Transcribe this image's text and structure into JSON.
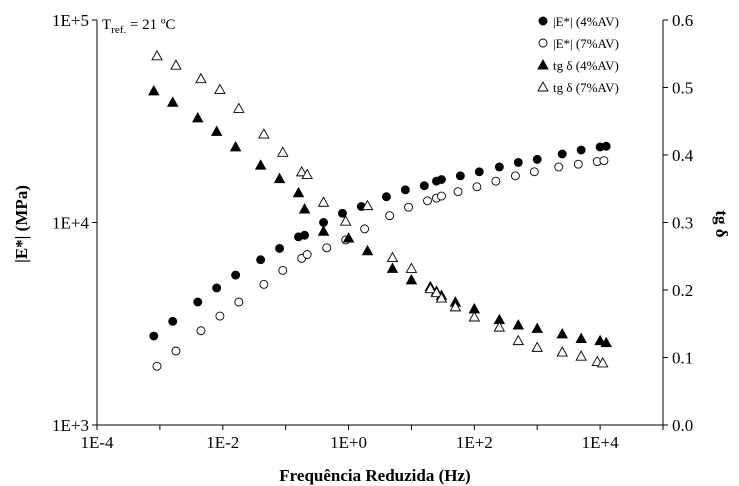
{
  "chart_data": {
    "type": "scatter",
    "annotation": {
      "main": "T",
      "sub": "ref.",
      "rest": " = 21 ºC"
    },
    "xlabel": "Frequência Reduzida (Hz)",
    "ylabel_left": "|E*| (MPa)",
    "ylabel_right": "tg δ",
    "x_scale": "log",
    "xlim": [
      0.0001,
      100000
    ],
    "x_tick_labels": [
      "1E-4",
      "1E-2",
      "1E+0",
      "1E+2",
      "1E+4"
    ],
    "y_left_scale": "log",
    "y_left_lim": [
      1000,
      100000
    ],
    "y_left_tick_labels": [
      "1E+3",
      "1E+4",
      "1E+5"
    ],
    "y_right_lim": [
      0.0,
      0.6
    ],
    "y_right_tick_labels": [
      "0.0",
      "0.1",
      "0.2",
      "0.3",
      "0.4",
      "0.5",
      "0.6"
    ],
    "grid": false,
    "legend_position": "top-right",
    "series": [
      {
        "name": "|E*| (4%AV)",
        "marker": "filled-circle",
        "axis": "left",
        "points": [
          [
            0.0008,
            2750
          ],
          [
            0.0016,
            3250
          ],
          [
            0.004,
            4050
          ],
          [
            0.008,
            4750
          ],
          [
            0.016,
            5500
          ],
          [
            0.04,
            6550
          ],
          [
            0.08,
            7450
          ],
          [
            0.16,
            8500
          ],
          [
            0.2,
            8650
          ],
          [
            0.4,
            10000
          ],
          [
            0.8,
            11100
          ],
          [
            1.6,
            12000
          ],
          [
            4,
            13400
          ],
          [
            8,
            14500
          ],
          [
            16,
            15200
          ],
          [
            25,
            16000
          ],
          [
            30,
            16300
          ],
          [
            60,
            17000
          ],
          [
            120,
            17800
          ],
          [
            250,
            18800
          ],
          [
            500,
            19800
          ],
          [
            1000,
            20500
          ],
          [
            2500,
            21800
          ],
          [
            5000,
            22800
          ],
          [
            10000,
            23600
          ],
          [
            12500,
            23800
          ]
        ]
      },
      {
        "name": "|E*| (7%AV)",
        "marker": "open-circle",
        "axis": "left",
        "points": [
          [
            0.0009,
            1950
          ],
          [
            0.0018,
            2320
          ],
          [
            0.0045,
            2920
          ],
          [
            0.009,
            3450
          ],
          [
            0.018,
            4050
          ],
          [
            0.045,
            4950
          ],
          [
            0.09,
            5800
          ],
          [
            0.18,
            6650
          ],
          [
            0.22,
            6950
          ],
          [
            0.45,
            7500
          ],
          [
            0.9,
            8200
          ],
          [
            1.8,
            9300
          ],
          [
            4.5,
            10800
          ],
          [
            9,
            11900
          ],
          [
            18,
            12800
          ],
          [
            25,
            13200
          ],
          [
            30,
            13500
          ],
          [
            55,
            14200
          ],
          [
            110,
            15000
          ],
          [
            220,
            16000
          ],
          [
            450,
            17000
          ],
          [
            900,
            17800
          ],
          [
            2200,
            18800
          ],
          [
            4500,
            19400
          ],
          [
            9000,
            20000
          ],
          [
            11500,
            20200
          ]
        ]
      },
      {
        "name": "tg δ (4%AV)",
        "marker": "filled-triangle",
        "axis": "right",
        "points": [
          [
            0.0008,
            0.495
          ],
          [
            0.0016,
            0.478
          ],
          [
            0.004,
            0.455
          ],
          [
            0.008,
            0.435
          ],
          [
            0.016,
            0.412
          ],
          [
            0.04,
            0.385
          ],
          [
            0.08,
            0.365
          ],
          [
            0.16,
            0.344
          ],
          [
            0.2,
            0.32
          ],
          [
            0.4,
            0.287
          ],
          [
            1.0,
            0.277
          ],
          [
            2.0,
            0.258
          ],
          [
            5.0,
            0.232
          ],
          [
            10.0,
            0.215
          ],
          [
            20.0,
            0.205
          ],
          [
            25.0,
            0.198
          ],
          [
            30.0,
            0.192
          ],
          [
            50.0,
            0.182
          ],
          [
            100.0,
            0.172
          ],
          [
            250.0,
            0.156
          ],
          [
            500.0,
            0.148
          ],
          [
            1000.0,
            0.143
          ],
          [
            2500.0,
            0.135
          ],
          [
            5000.0,
            0.128
          ],
          [
            10000.0,
            0.125
          ],
          [
            12500.0,
            0.122
          ]
        ]
      },
      {
        "name": "tg δ (7%AV)",
        "marker": "open-triangle",
        "axis": "right",
        "points": [
          [
            0.0009,
            0.547
          ],
          [
            0.0018,
            0.533
          ],
          [
            0.0045,
            0.513
          ],
          [
            0.009,
            0.497
          ],
          [
            0.018,
            0.469
          ],
          [
            0.045,
            0.431
          ],
          [
            0.09,
            0.404
          ],
          [
            0.18,
            0.375
          ],
          [
            0.22,
            0.371
          ],
          [
            0.4,
            0.33
          ],
          [
            0.9,
            0.302
          ],
          [
            2.0,
            0.325
          ],
          [
            5.0,
            0.248
          ],
          [
            10.0,
            0.232
          ],
          [
            20.0,
            0.202
          ],
          [
            25.0,
            0.196
          ],
          [
            30.0,
            0.188
          ],
          [
            50.0,
            0.175
          ],
          [
            100.0,
            0.16
          ],
          [
            250.0,
            0.145
          ],
          [
            500.0,
            0.125
          ],
          [
            1000.0,
            0.115
          ],
          [
            2500.0,
            0.108
          ],
          [
            5000.0,
            0.102
          ],
          [
            9000.0,
            0.094
          ],
          [
            11000.0,
            0.092
          ]
        ]
      }
    ]
  }
}
